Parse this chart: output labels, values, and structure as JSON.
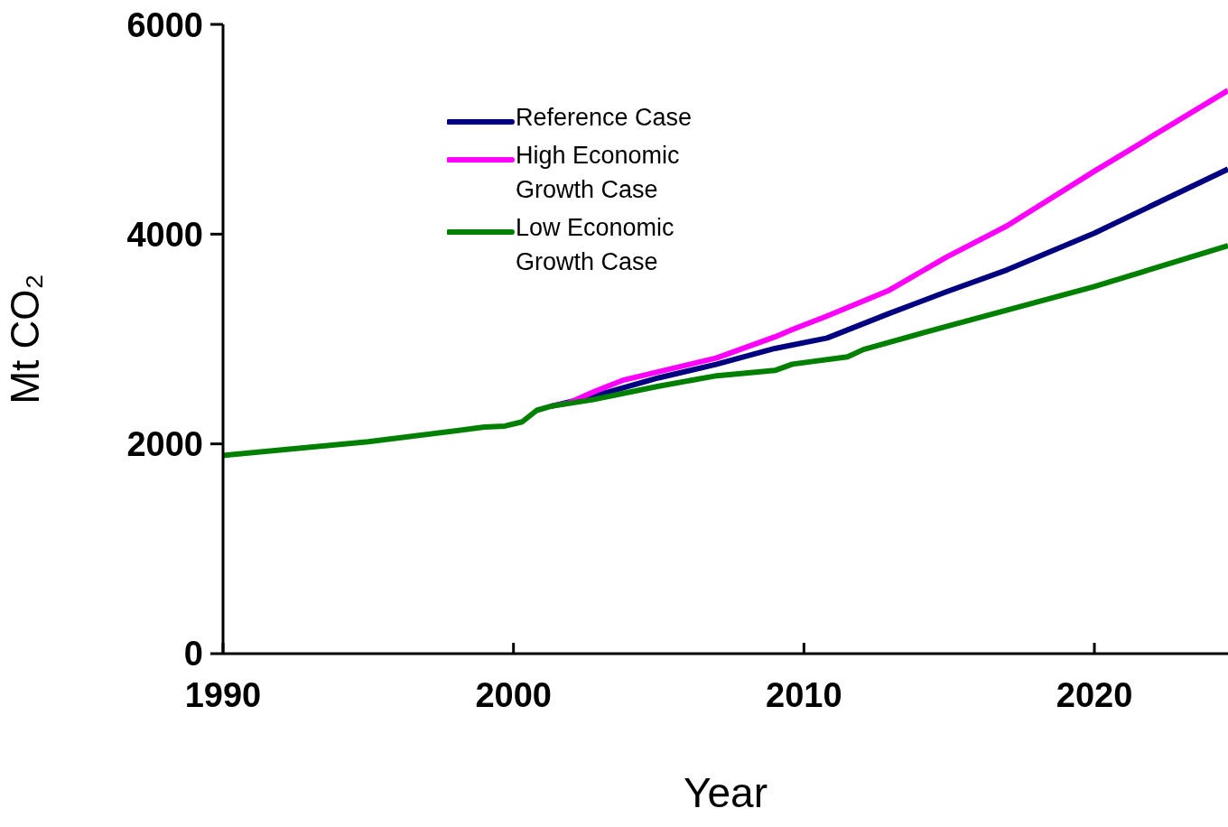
{
  "chart_data": {
    "type": "line",
    "xlabel": "Year",
    "ylabel": "Mt CO₂",
    "xlim": [
      1990,
      2024.6
    ],
    "xticks": [
      1990,
      2000,
      2010,
      2020
    ],
    "ylim": [
      0,
      6000
    ],
    "yticks": [
      0,
      2000,
      4000,
      6000
    ],
    "grid": false,
    "legend": "top left",
    "marker": "none",
    "line_style": "solid",
    "series": [
      {
        "name": "Reference Case",
        "color": "#000080",
        "x": [
          2001.3,
          2002.7,
          2005,
          2007,
          2009,
          2010.8,
          2012.9,
          2014.9,
          2017,
          2020,
          2024.6
        ],
        "values": [
          2360,
          2450,
          2630,
          2760,
          2910,
          3010,
          3240,
          3450,
          3660,
          4010,
          4620
        ]
      },
      {
        "name": "High Economic Growth Case",
        "color": "#ff00ff",
        "x": [
          2001.3,
          2001.9,
          2002.8,
          2003.8,
          2007,
          2009,
          2009.6,
          2010.8,
          2012.9,
          2014.9,
          2017,
          2020,
          2024.6
        ],
        "values": [
          2360,
          2390,
          2500,
          2610,
          2820,
          3020,
          3090,
          3220,
          3460,
          3780,
          4080,
          4600,
          5370
        ]
      },
      {
        "name": "Low Economic Growth Case",
        "color": "#008000",
        "x": [
          1990,
          1995,
          1999,
          1999.7,
          2000.3,
          2000.8,
          2001.3,
          2002.7,
          2005,
          2007,
          2009,
          2009.6,
          2011.5,
          2012.05,
          2014.9,
          2020,
          2024.6
        ],
        "values": [
          1890,
          2020,
          2160,
          2170,
          2210,
          2320,
          2360,
          2420,
          2550,
          2650,
          2700,
          2760,
          2830,
          2900,
          3120,
          3500,
          3890
        ]
      }
    ]
  }
}
